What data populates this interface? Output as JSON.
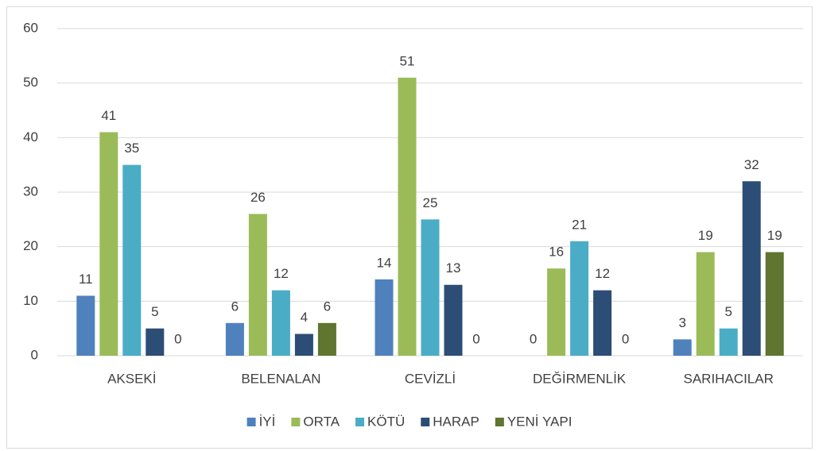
{
  "chart_data": {
    "type": "bar",
    "categories": [
      "AKSEKİ",
      "BELENALAN",
      "CEVİZLİ",
      "DEĞİRMENLİK",
      "SARIHACILAR"
    ],
    "series": [
      {
        "name": "İYİ",
        "color": "#4f81bd",
        "values": [
          11,
          6,
          14,
          0,
          3
        ]
      },
      {
        "name": "ORTA",
        "color": "#9bbb59",
        "values": [
          41,
          26,
          51,
          16,
          19
        ]
      },
      {
        "name": "KÖTÜ",
        "color": "#4bacc6",
        "values": [
          35,
          12,
          25,
          21,
          5
        ]
      },
      {
        "name": "HARAP",
        "color": "#2c4d75",
        "values": [
          5,
          4,
          13,
          12,
          32
        ]
      },
      {
        "name": "YENİ YAPI",
        "color": "#5f7530",
        "values": [
          0,
          6,
          0,
          0,
          19
        ]
      }
    ],
    "ylim": [
      0,
      60
    ],
    "yticks": [
      0,
      10,
      20,
      30,
      40,
      50,
      60
    ],
    "grid": true,
    "legend": "bottom"
  }
}
